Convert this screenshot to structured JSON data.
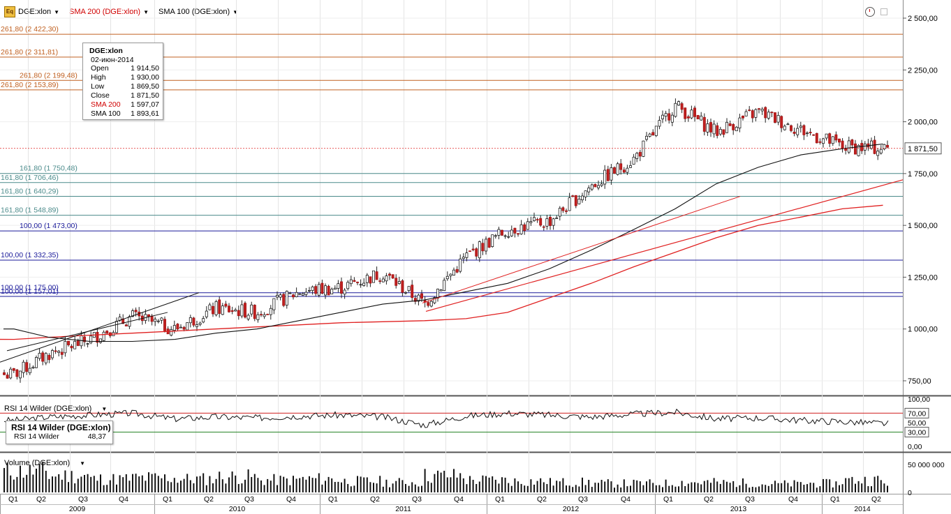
{
  "header": {
    "symbol": "DGE:xlon",
    "sma200_label": "SMA 200 (DGE:xlon)",
    "sma100_label": "SMA 100 (DGE:xlon)"
  },
  "infobox": {
    "title": "DGE:xlon",
    "date": "02-июн-2014",
    "rows": [
      {
        "k": "Open",
        "v": "1 914,50"
      },
      {
        "k": "High",
        "v": "1 930,00"
      },
      {
        "k": "Low",
        "v": "1 869,50"
      },
      {
        "k": "Close",
        "v": "1 871,50"
      },
      {
        "k": "SMA 200",
        "v": "1 597,07"
      },
      {
        "k": "SMA 100",
        "v": "1 893,61"
      }
    ]
  },
  "rsi_panel": {
    "label": "RSI 14 Wilder (DGE:xlon)",
    "box_title": "RSI 14 Wilder (DGE:xlon)",
    "box_key": "RSI 14 Wilder",
    "box_value": "48,37",
    "ticks": [
      "100,00",
      "70,00",
      "50,00",
      "30,00",
      "0,00"
    ]
  },
  "volume_panel": {
    "label": "Volume (DGE:xlon)",
    "ticks": [
      "50 000 000",
      "0"
    ]
  },
  "price_axis": {
    "ticks": [
      "2 500,00",
      "2 250,00",
      "2 000,00",
      "1 750,00",
      "1 500,00",
      "1 250,00",
      "1 000,00",
      "750,00"
    ],
    "last_price": "1 871,50"
  },
  "time_axis": {
    "quarters": [
      "Q1",
      "Q2",
      "Q3",
      "Q4",
      "Q1",
      "Q2",
      "Q3",
      "Q4",
      "Q1",
      "Q2",
      "Q3",
      "Q4",
      "Q1",
      "Q2",
      "Q3",
      "Q4",
      "Q1",
      "Q2",
      "Q3",
      "Q4",
      "Q1",
      "Q2"
    ],
    "years": [
      "2009",
      "2010",
      "2011",
      "2012",
      "2013",
      "2014"
    ]
  },
  "levels": [
    {
      "label": "261,80 (2 422,30)",
      "price": 2422.3,
      "color": "#c06020"
    },
    {
      "label": "261,80 (2 311,81)",
      "price": 2311.81,
      "color": "#c06020"
    },
    {
      "label": "261,80 (2 199,48)",
      "price": 2199.48,
      "color": "#c06020"
    },
    {
      "label": "261,80 (2 153,89)",
      "price": 2153.89,
      "color": "#c06020"
    },
    {
      "label": "161,80 (1 750,48)",
      "price": 1750.48,
      "color": "#4a8a8a"
    },
    {
      "label": "161,80 (1 706,46)",
      "price": 1706.46,
      "color": "#4a8a8a"
    },
    {
      "label": "161,80 (1 640,29)",
      "price": 1640.29,
      "color": "#4a8a8a"
    },
    {
      "label": "161,80 (1 548,89)",
      "price": 1548.89,
      "color": "#4a8a8a"
    },
    {
      "label": "100,00 (1 473,00)",
      "price": 1473.0,
      "color": "#1a1a9a"
    },
    {
      "label": "100,00 (1 332,35)",
      "price": 1332.35,
      "color": "#1a1a9a"
    },
    {
      "label": "100,00 (1 175,00)",
      "price": 1175.0,
      "color": "#1a1a9a"
    },
    {
      "label": "100,00 (1 157,01)",
      "price": 1157.01,
      "color": "#1a1a9a"
    }
  ],
  "chart_data": {
    "type": "line",
    "title": "",
    "x": [
      "2009-Q1",
      "2009-Q2",
      "2009-Q3",
      "2009-Q4",
      "2010-Q1",
      "2010-Q2",
      "2010-Q3",
      "2010-Q4",
      "2011-Q1",
      "2011-Q2",
      "2011-Q3",
      "2011-Q4",
      "2012-Q1",
      "2012-Q2",
      "2012-Q3",
      "2012-Q4",
      "2013-Q1",
      "2013-Q2",
      "2013-Q3",
      "2013-Q4",
      "2014-Q1",
      "2014-Q2"
    ],
    "series": [
      {
        "name": "DGE:xlon",
        "values": [
          780,
          880,
          950,
          1060,
          1000,
          1100,
          1080,
          1180,
          1200,
          1270,
          1120,
          1350,
          1480,
          1520,
          1690,
          1820,
          2080,
          1950,
          2050,
          1960,
          1880,
          1871.5
        ]
      },
      {
        "name": "SMA 200 (DGE:xlon)",
        "values": [
          950,
          960,
          970,
          980,
          990,
          1000,
          1010,
          1020,
          1030,
          1035,
          1040,
          1050,
          1080,
          1150,
          1220,
          1300,
          1370,
          1440,
          1500,
          1540,
          1580,
          1597
        ]
      },
      {
        "name": "SMA 100 (DGE:xlon)",
        "values": [
          1000,
          960,
          940,
          940,
          950,
          980,
          1000,
          1040,
          1080,
          1120,
          1140,
          1180,
          1220,
          1290,
          1380,
          1480,
          1580,
          1700,
          1780,
          1840,
          1870,
          1893
        ]
      }
    ],
    "ylim": [
      650,
      2560
    ],
    "rsi": {
      "name": "RSI 14 Wilder (DGE:xlon)",
      "values": [
        55,
        62,
        66,
        70,
        58,
        62,
        60,
        64,
        66,
        62,
        45,
        64,
        70,
        66,
        62,
        68,
        72,
        58,
        60,
        55,
        52,
        48.37
      ],
      "levels": [
        70,
        30
      ]
    },
    "volume": {
      "name": "Volume (DGE:xlon)",
      "values": [
        38000000,
        30000000,
        24000000,
        26000000,
        24000000,
        28000000,
        22000000,
        24000000,
        20000000,
        18000000,
        30000000,
        22000000,
        20000000,
        18000000,
        16000000,
        16000000,
        18000000,
        17000000,
        15000000,
        16000000,
        22000000,
        14000000
      ]
    }
  }
}
